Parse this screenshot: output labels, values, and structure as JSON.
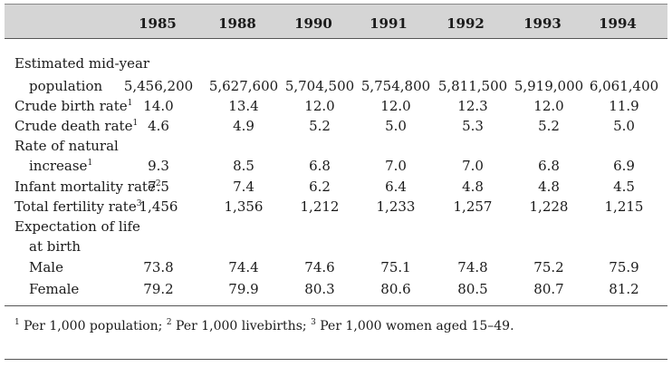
{
  "years": [
    "1985",
    "1988",
    "1990",
    "1991",
    "1992",
    "1993",
    "1994"
  ],
  "rows": [
    {
      "label": "Estimated mid-year",
      "sup": "",
      "values": [
        "",
        "",
        "",
        "",
        "",
        "",
        ""
      ]
    },
    {
      "label": "population",
      "sup": "",
      "values": [
        "5,456,200",
        "5,627,600",
        "5,704,500",
        "5,754,800",
        "5,811,500",
        "5,919,000",
        "6,061,400"
      ]
    },
    {
      "label": "Crude birth rate",
      "sup": "1",
      "values": [
        "14.0",
        "13.4",
        "12.0",
        "12.0",
        "12.3",
        "12.0",
        "11.9"
      ]
    },
    {
      "label": "Crude death rate",
      "sup": "1",
      "values": [
        "4.6",
        "4.9",
        "5.2",
        "5.0",
        "5.3",
        "5.2",
        "5.0"
      ]
    },
    {
      "label": "Rate of natural",
      "sup": "",
      "values": [
        "",
        "",
        "",
        "",
        "",
        "",
        ""
      ]
    },
    {
      "label": "increase",
      "sup": "1",
      "values": [
        "9.3",
        "8.5",
        "6.8",
        "7.0",
        "7.0",
        "6.8",
        "6.9"
      ]
    },
    {
      "label": "Infant mortality rate",
      "sup": "2",
      "values": [
        "7.5",
        "7.4",
        "6.2",
        "6.4",
        "4.8",
        "4.8",
        "4.5"
      ]
    },
    {
      "label": "Total fertility rate",
      "sup": "3",
      "values": [
        "1,456",
        "1,356",
        "1,212",
        "1,233",
        "1,257",
        "1,228",
        "1,215"
      ]
    },
    {
      "label": "Expectation of life",
      "sup": "",
      "values": [
        "",
        "",
        "",
        "",
        "",
        "",
        ""
      ]
    },
    {
      "label": "at birth",
      "sup": "",
      "values": [
        "",
        "",
        "",
        "",
        "",
        "",
        ""
      ]
    },
    {
      "label": "Male",
      "sup": "",
      "values": [
        "73.8",
        "74.4",
        "74.6",
        "75.1",
        "74.8",
        "75.2",
        "75.9"
      ]
    },
    {
      "label": "Female",
      "sup": "",
      "values": [
        "79.2",
        "79.9",
        "80.3",
        "80.6",
        "80.5",
        "80.7",
        "81.2"
      ]
    }
  ],
  "footnote": {
    "n1": "1",
    "t1": " Per 1,000 population; ",
    "n2": "2",
    "t2": " Per 1,000 livebirths; ",
    "n3": "3",
    "t3": " Per 1,000 women aged 15–49."
  }
}
